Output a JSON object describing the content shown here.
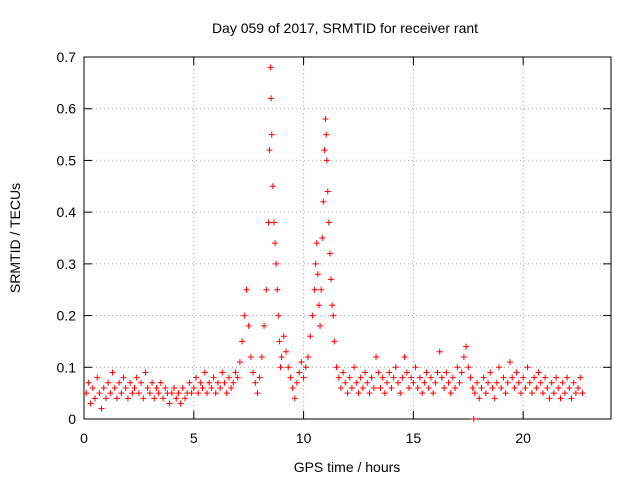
{
  "chart_data": {
    "type": "scatter",
    "title": "Day 059 of 2017, SRMTID for receiver rant",
    "xlabel": "GPS time / hours",
    "ylabel": "SRMTID / TECUs",
    "xlim": [
      0,
      24
    ],
    "ylim": [
      0,
      0.7
    ],
    "xticks": [
      0,
      5,
      10,
      15,
      20
    ],
    "xtick_labels": [
      "0",
      "5",
      "10",
      "15",
      "20"
    ],
    "yticks": [
      0,
      0.1,
      0.2,
      0.3,
      0.4,
      0.5,
      0.6,
      0.7
    ],
    "ytick_labels": [
      "0",
      "0.1",
      "0.2",
      "0.3",
      "0.4",
      "0.5",
      "0.6",
      "0.7"
    ],
    "grid": true,
    "marker": "+",
    "color": "#ff0000",
    "series": [
      {
        "name": "SRMTID",
        "points": [
          [
            0.1,
            0.05
          ],
          [
            0.2,
            0.07
          ],
          [
            0.3,
            0.03
          ],
          [
            0.4,
            0.06
          ],
          [
            0.5,
            0.04
          ],
          [
            0.6,
            0.08
          ],
          [
            0.7,
            0.05
          ],
          [
            0.8,
            0.02
          ],
          [
            0.9,
            0.06
          ],
          [
            1.0,
            0.04
          ],
          [
            1.1,
            0.07
          ],
          [
            1.2,
            0.05
          ],
          [
            1.3,
            0.09
          ],
          [
            1.4,
            0.06
          ],
          [
            1.5,
            0.04
          ],
          [
            1.6,
            0.07
          ],
          [
            1.7,
            0.05
          ],
          [
            1.8,
            0.08
          ],
          [
            1.9,
            0.06
          ],
          [
            2.0,
            0.04
          ],
          [
            2.1,
            0.07
          ],
          [
            2.2,
            0.05
          ],
          [
            2.3,
            0.06
          ],
          [
            2.4,
            0.08
          ],
          [
            2.5,
            0.05
          ],
          [
            2.6,
            0.07
          ],
          [
            2.7,
            0.04
          ],
          [
            2.8,
            0.09
          ],
          [
            2.9,
            0.06
          ],
          [
            3.0,
            0.05
          ],
          [
            3.1,
            0.07
          ],
          [
            3.2,
            0.04
          ],
          [
            3.3,
            0.06
          ],
          [
            3.4,
            0.05
          ],
          [
            3.5,
            0.07
          ],
          [
            3.6,
            0.04
          ],
          [
            3.7,
            0.06
          ],
          [
            3.8,
            0.05
          ],
          [
            3.9,
            0.03
          ],
          [
            4.0,
            0.05
          ],
          [
            4.1,
            0.06
          ],
          [
            4.2,
            0.04
          ],
          [
            4.3,
            0.05
          ],
          [
            4.4,
            0.03
          ],
          [
            4.5,
            0.06
          ],
          [
            4.6,
            0.04
          ],
          [
            4.7,
            0.05
          ],
          [
            4.8,
            0.07
          ],
          [
            4.9,
            0.05
          ],
          [
            5.0,
            0.06
          ],
          [
            5.1,
            0.08
          ],
          [
            5.2,
            0.05
          ],
          [
            5.3,
            0.07
          ],
          [
            5.4,
            0.06
          ],
          [
            5.5,
            0.09
          ],
          [
            5.6,
            0.05
          ],
          [
            5.7,
            0.07
          ],
          [
            5.8,
            0.06
          ],
          [
            5.9,
            0.08
          ],
          [
            6.0,
            0.05
          ],
          [
            6.1,
            0.07
          ],
          [
            6.2,
            0.06
          ],
          [
            6.3,
            0.09
          ],
          [
            6.4,
            0.07
          ],
          [
            6.5,
            0.05
          ],
          [
            6.6,
            0.08
          ],
          [
            6.7,
            0.06
          ],
          [
            6.8,
            0.07
          ],
          [
            6.9,
            0.09
          ],
          [
            7.0,
            0.08
          ],
          [
            7.1,
            0.11
          ],
          [
            7.2,
            0.15
          ],
          [
            7.3,
            0.2
          ],
          [
            7.4,
            0.25
          ],
          [
            7.5,
            0.18
          ],
          [
            7.6,
            0.12
          ],
          [
            7.7,
            0.09
          ],
          [
            7.8,
            0.07
          ],
          [
            7.9,
            0.05
          ],
          [
            8.0,
            0.08
          ],
          [
            8.1,
            0.12
          ],
          [
            8.2,
            0.18
          ],
          [
            8.3,
            0.25
          ],
          [
            8.4,
            0.38
          ],
          [
            8.45,
            0.52
          ],
          [
            8.5,
            0.68
          ],
          [
            8.52,
            0.62
          ],
          [
            8.55,
            0.55
          ],
          [
            8.6,
            0.45
          ],
          [
            8.65,
            0.38
          ],
          [
            8.7,
            0.34
          ],
          [
            8.75,
            0.3
          ],
          [
            8.8,
            0.25
          ],
          [
            8.85,
            0.2
          ],
          [
            8.9,
            0.15
          ],
          [
            8.95,
            0.1
          ],
          [
            9.0,
            0.12
          ],
          [
            9.1,
            0.16
          ],
          [
            9.2,
            0.13
          ],
          [
            9.3,
            0.1
          ],
          [
            9.4,
            0.08
          ],
          [
            9.5,
            0.06
          ],
          [
            9.6,
            0.04
          ],
          [
            9.7,
            0.07
          ],
          [
            9.8,
            0.09
          ],
          [
            9.9,
            0.11
          ],
          [
            10.0,
            0.08
          ],
          [
            10.1,
            0.1
          ],
          [
            10.2,
            0.12
          ],
          [
            10.3,
            0.16
          ],
          [
            10.4,
            0.2
          ],
          [
            10.5,
            0.25
          ],
          [
            10.55,
            0.3
          ],
          [
            10.6,
            0.34
          ],
          [
            10.65,
            0.28
          ],
          [
            10.7,
            0.22
          ],
          [
            10.75,
            0.18
          ],
          [
            10.8,
            0.25
          ],
          [
            10.85,
            0.35
          ],
          [
            10.9,
            0.42
          ],
          [
            10.95,
            0.52
          ],
          [
            11.0,
            0.58
          ],
          [
            11.03,
            0.55
          ],
          [
            11.06,
            0.5
          ],
          [
            11.1,
            0.44
          ],
          [
            11.15,
            0.38
          ],
          [
            11.2,
            0.32
          ],
          [
            11.25,
            0.27
          ],
          [
            11.3,
            0.22
          ],
          [
            11.35,
            0.2
          ],
          [
            11.4,
            0.15
          ],
          [
            11.5,
            0.1
          ],
          [
            11.6,
            0.08
          ],
          [
            11.7,
            0.06
          ],
          [
            11.8,
            0.09
          ],
          [
            11.9,
            0.07
          ],
          [
            12.0,
            0.05
          ],
          [
            12.1,
            0.08
          ],
          [
            12.2,
            0.06
          ],
          [
            12.3,
            0.1
          ],
          [
            12.4,
            0.07
          ],
          [
            12.5,
            0.05
          ],
          [
            12.6,
            0.08
          ],
          [
            12.7,
            0.06
          ],
          [
            12.8,
            0.09
          ],
          [
            12.9,
            0.07
          ],
          [
            13.0,
            0.05
          ],
          [
            13.1,
            0.08
          ],
          [
            13.2,
            0.06
          ],
          [
            13.3,
            0.12
          ],
          [
            13.4,
            0.09
          ],
          [
            13.5,
            0.06
          ],
          [
            13.6,
            0.08
          ],
          [
            13.7,
            0.05
          ],
          [
            13.8,
            0.07
          ],
          [
            13.9,
            0.09
          ],
          [
            14.0,
            0.06
          ],
          [
            14.1,
            0.08
          ],
          [
            14.2,
            0.1
          ],
          [
            14.3,
            0.07
          ],
          [
            14.4,
            0.05
          ],
          [
            14.5,
            0.08
          ],
          [
            14.6,
            0.12
          ],
          [
            14.7,
            0.09
          ],
          [
            14.8,
            0.06
          ],
          [
            14.9,
            0.08
          ],
          [
            15.0,
            0.07
          ],
          [
            15.1,
            0.1
          ],
          [
            15.2,
            0.06
          ],
          [
            15.3,
            0.08
          ],
          [
            15.4,
            0.05
          ],
          [
            15.5,
            0.07
          ],
          [
            15.6,
            0.09
          ],
          [
            15.7,
            0.06
          ],
          [
            15.8,
            0.08
          ],
          [
            15.9,
            0.05
          ],
          [
            16.0,
            0.07
          ],
          [
            16.1,
            0.09
          ],
          [
            16.2,
            0.13
          ],
          [
            16.3,
            0.08
          ],
          [
            16.4,
            0.06
          ],
          [
            16.5,
            0.09
          ],
          [
            16.6,
            0.07
          ],
          [
            16.7,
            0.05
          ],
          [
            16.8,
            0.08
          ],
          [
            16.9,
            0.06
          ],
          [
            17.0,
            0.1
          ],
          [
            17.1,
            0.07
          ],
          [
            17.2,
            0.09
          ],
          [
            17.3,
            0.12
          ],
          [
            17.4,
            0.14
          ],
          [
            17.5,
            0.1
          ],
          [
            17.6,
            0.08
          ],
          [
            17.7,
            0.06
          ],
          [
            17.75,
            0.0
          ],
          [
            17.8,
            0.05
          ],
          [
            17.9,
            0.07
          ],
          [
            18.0,
            0.04
          ],
          [
            18.1,
            0.06
          ],
          [
            18.2,
            0.08
          ],
          [
            18.3,
            0.05
          ],
          [
            18.4,
            0.07
          ],
          [
            18.5,
            0.09
          ],
          [
            18.6,
            0.06
          ],
          [
            18.7,
            0.04
          ],
          [
            18.8,
            0.07
          ],
          [
            18.9,
            0.1
          ],
          [
            19.0,
            0.06
          ],
          [
            19.1,
            0.08
          ],
          [
            19.2,
            0.05
          ],
          [
            19.3,
            0.07
          ],
          [
            19.4,
            0.11
          ],
          [
            19.5,
            0.08
          ],
          [
            19.6,
            0.06
          ],
          [
            19.7,
            0.09
          ],
          [
            19.8,
            0.07
          ],
          [
            19.9,
            0.05
          ],
          [
            20.0,
            0.08
          ],
          [
            20.1,
            0.06
          ],
          [
            20.2,
            0.1
          ],
          [
            20.3,
            0.07
          ],
          [
            20.4,
            0.05
          ],
          [
            20.5,
            0.08
          ],
          [
            20.6,
            0.06
          ],
          [
            20.7,
            0.09
          ],
          [
            20.8,
            0.07
          ],
          [
            20.9,
            0.05
          ],
          [
            21.0,
            0.08
          ],
          [
            21.1,
            0.06
          ],
          [
            21.2,
            0.04
          ],
          [
            21.3,
            0.07
          ],
          [
            21.4,
            0.05
          ],
          [
            21.5,
            0.08
          ],
          [
            21.6,
            0.06
          ],
          [
            21.7,
            0.04
          ],
          [
            21.8,
            0.07
          ],
          [
            21.9,
            0.05
          ],
          [
            22.0,
            0.08
          ],
          [
            22.1,
            0.06
          ],
          [
            22.2,
            0.04
          ],
          [
            22.3,
            0.07
          ],
          [
            22.4,
            0.05
          ],
          [
            22.5,
            0.06
          ],
          [
            22.6,
            0.08
          ],
          [
            22.7,
            0.05
          ]
        ]
      }
    ]
  }
}
